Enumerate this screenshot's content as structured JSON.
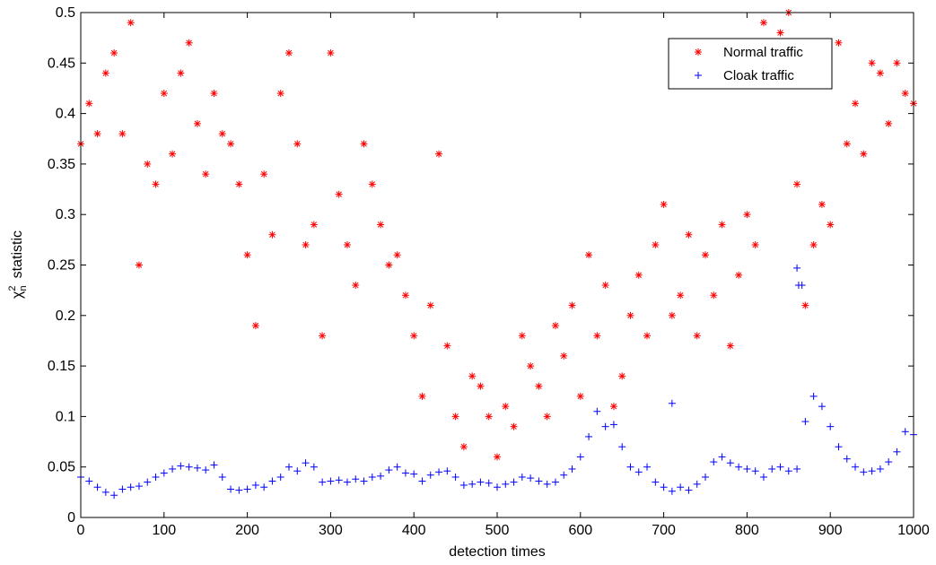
{
  "chart_data": {
    "type": "scatter",
    "title": "",
    "xlabel": "detection  times",
    "ylabel_main": "χ",
    "ylabel_sup": "2",
    "ylabel_sub": "n",
    "ylabel_rest": "statistic",
    "xlim": [
      0,
      1000
    ],
    "ylim": [
      0,
      0.5
    ],
    "xticks": [
      0,
      100,
      200,
      300,
      400,
      500,
      600,
      700,
      800,
      900,
      1000
    ],
    "yticks": [
      0,
      0.05,
      0.1,
      0.15,
      0.2,
      0.25,
      0.3,
      0.35,
      0.4,
      0.45,
      0.5
    ],
    "xtick_labels": [
      "0",
      "100",
      "200",
      "300",
      "400",
      "500",
      "600",
      "700",
      "800",
      "900",
      "1000"
    ],
    "ytick_labels": [
      "0",
      "0.05",
      "0.1",
      "0.15",
      "0.2",
      "0.25",
      "0.3",
      "0.35",
      "0.4",
      "0.45",
      "0.5"
    ],
    "grid": false,
    "legend_position": "top-right",
    "series": [
      {
        "name": "Normal traffic",
        "marker": "asterisk",
        "color": "#ff0000",
        "x": [
          0,
          10,
          20,
          30,
          40,
          50,
          60,
          70,
          80,
          90,
          100,
          110,
          120,
          130,
          140,
          150,
          160,
          170,
          180,
          190,
          200,
          210,
          220,
          230,
          240,
          250,
          260,
          270,
          280,
          290,
          300,
          310,
          320,
          330,
          340,
          350,
          360,
          370,
          380,
          390,
          400,
          410,
          420,
          430,
          440,
          450,
          460,
          470,
          480,
          490,
          500,
          510,
          520,
          530,
          540,
          550,
          560,
          570,
          580,
          590,
          600,
          610,
          620,
          630,
          640,
          650,
          660,
          670,
          680,
          690,
          700,
          710,
          720,
          730,
          740,
          750,
          760,
          770,
          780,
          790,
          800,
          810,
          820,
          830,
          840,
          850,
          860,
          870,
          880,
          890,
          900,
          910,
          920,
          930,
          940,
          950,
          960,
          970,
          980,
          990,
          1000
        ],
        "y": [
          0.37,
          0.41,
          0.38,
          0.44,
          0.46,
          0.38,
          0.49,
          0.25,
          0.35,
          0.33,
          0.42,
          0.36,
          0.44,
          0.47,
          0.39,
          0.34,
          0.42,
          0.38,
          0.37,
          0.33,
          0.26,
          0.19,
          0.34,
          0.28,
          0.42,
          0.46,
          0.37,
          0.27,
          0.29,
          0.18,
          0.46,
          0.32,
          0.27,
          0.23,
          0.37,
          0.33,
          0.29,
          0.25,
          0.26,
          0.22,
          0.18,
          0.12,
          0.21,
          0.36,
          0.17,
          0.1,
          0.07,
          0.14,
          0.13,
          0.1,
          0.06,
          0.11,
          0.09,
          0.18,
          0.15,
          0.13,
          0.1,
          0.19,
          0.16,
          0.21,
          0.12,
          0.26,
          0.18,
          0.23,
          0.11,
          0.14,
          0.2,
          0.24,
          0.18,
          0.27,
          0.31,
          0.2,
          0.22,
          0.28,
          0.18,
          0.26,
          0.22,
          0.29,
          0.17,
          0.24,
          0.3,
          0.27,
          0.49,
          0.46,
          0.48,
          0.5,
          0.33,
          0.21,
          0.27,
          0.31,
          0.29,
          0.47,
          0.37,
          0.41,
          0.36,
          0.45,
          0.44,
          0.39,
          0.45,
          0.42,
          0.41
        ]
      },
      {
        "name": "Cloak traffic",
        "marker": "plus",
        "color": "#0000ff",
        "x": [
          0,
          10,
          20,
          30,
          40,
          50,
          60,
          70,
          80,
          90,
          100,
          110,
          120,
          130,
          140,
          150,
          160,
          170,
          180,
          190,
          200,
          210,
          220,
          230,
          240,
          250,
          260,
          270,
          280,
          290,
          300,
          310,
          320,
          330,
          340,
          350,
          360,
          370,
          380,
          390,
          400,
          410,
          420,
          430,
          440,
          450,
          460,
          470,
          480,
          490,
          500,
          510,
          520,
          530,
          540,
          550,
          560,
          570,
          580,
          590,
          600,
          610,
          620,
          630,
          640,
          650,
          660,
          670,
          680,
          690,
          700,
          710,
          720,
          730,
          740,
          750,
          760,
          770,
          780,
          790,
          800,
          810,
          820,
          830,
          840,
          850,
          860,
          870,
          880,
          890,
          900,
          910,
          920,
          930,
          940,
          950,
          960,
          970,
          980,
          990,
          1000
        ],
        "y": [
          0.04,
          0.036,
          0.03,
          0.025,
          0.022,
          0.028,
          0.03,
          0.031,
          0.035,
          0.04,
          0.044,
          0.048,
          0.051,
          0.05,
          0.049,
          0.047,
          0.052,
          0.04,
          0.028,
          0.027,
          0.028,
          0.032,
          0.03,
          0.036,
          0.04,
          0.05,
          0.046,
          0.054,
          0.05,
          0.035,
          0.036,
          0.037,
          0.035,
          0.038,
          0.036,
          0.04,
          0.041,
          0.047,
          0.05,
          0.044,
          0.043,
          0.036,
          0.042,
          0.045,
          0.046,
          0.04,
          0.032,
          0.033,
          0.035,
          0.034,
          0.03,
          0.033,
          0.035,
          0.04,
          0.039,
          0.036,
          0.033,
          0.035,
          0.042,
          0.048,
          0.06,
          0.08,
          0.105,
          0.09,
          0.092,
          0.07,
          0.05,
          0.045,
          0.05,
          0.035,
          0.03,
          0.026,
          0.03,
          0.027,
          0.033,
          0.04,
          0.055,
          0.06,
          0.054,
          0.05,
          0.048,
          0.046,
          0.04,
          0.048,
          0.05,
          0.046,
          0.048,
          0.095,
          0.12,
          0.11,
          0.09,
          0.07,
          0.058,
          0.05,
          0.045,
          0.046,
          0.048,
          0.055,
          0.065,
          0.085,
          0.082
        ],
        "outliers_x": [
          710,
          860,
          862,
          866
        ],
        "outliers_y": [
          0.113,
          0.247,
          0.23,
          0.23
        ]
      }
    ]
  }
}
